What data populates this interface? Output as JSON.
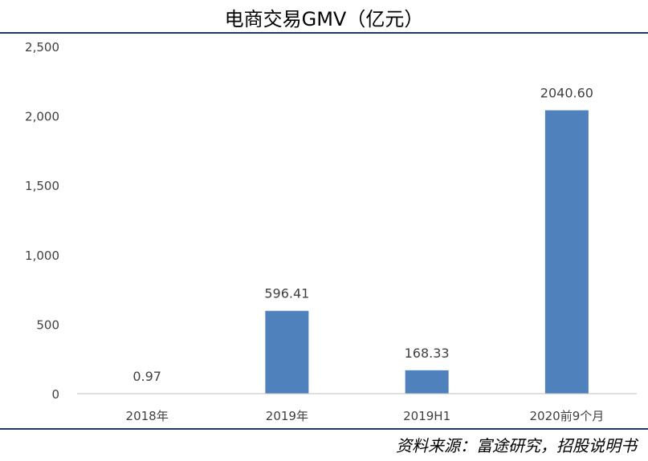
{
  "title": "电商交易GMV（亿元）",
  "source": "资料来源：富途研究，招股说明书",
  "colors": {
    "bar": "#4f81bd",
    "rule": "#1f3864",
    "axis": "#bfbfbf",
    "text": "#404040"
  },
  "chart_data": {
    "type": "bar",
    "title": "电商交易GMV（亿元）",
    "categories": [
      "2018年",
      "2019年",
      "2019H1",
      "2020前9个月"
    ],
    "values": [
      0.97,
      596.41,
      168.33,
      2040.6
    ],
    "data_labels": [
      "0.97",
      "596.41",
      "168.33",
      "2040.60"
    ],
    "ylim": [
      0,
      2500
    ],
    "yticks": [
      0,
      500,
      1000,
      1500,
      2000,
      2500
    ],
    "ytick_labels": [
      "0",
      "500",
      "1,000",
      "1,500",
      "2,000",
      "2,500"
    ],
    "grid": false,
    "xlabel": "",
    "ylabel": ""
  }
}
